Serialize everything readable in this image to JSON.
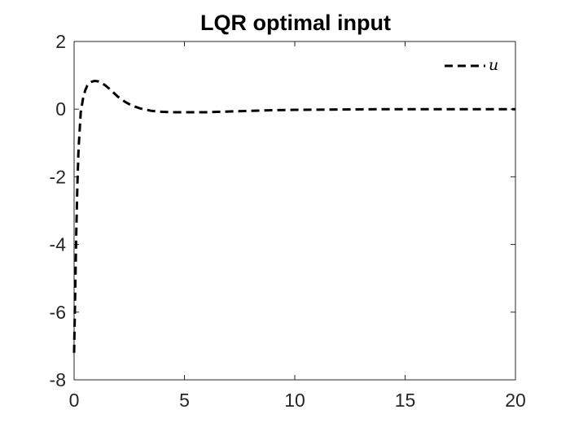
{
  "chart_data": {
    "type": "line",
    "title": "LQR optimal input",
    "xlabel": "",
    "ylabel": "",
    "xlim": [
      0,
      20
    ],
    "ylim": [
      -8,
      2
    ],
    "xticks": [
      "0",
      "5",
      "10",
      "15",
      "20"
    ],
    "yticks": [
      "2",
      "0",
      "-2",
      "-4",
      "-6",
      "-8"
    ],
    "grid": false,
    "legend": {
      "position": "top-right",
      "entries": [
        "u"
      ]
    },
    "series": [
      {
        "name": "u",
        "style": "dashed",
        "color": "#000000",
        "x": [
          0,
          0.05,
          0.1,
          0.15,
          0.2,
          0.3,
          0.4,
          0.5,
          0.6,
          0.7,
          0.8,
          0.9,
          1.0,
          1.1,
          1.2,
          1.4,
          1.6,
          1.8,
          2.0,
          2.3,
          2.6,
          3.0,
          3.5,
          4.0,
          4.5,
          5.0,
          5.5,
          6.0,
          6.5,
          7.0,
          8.0,
          9.0,
          10.0,
          12.0,
          14.0,
          16.0,
          18.0,
          20.0
        ],
        "y": [
          -7.2,
          -5.4,
          -3.6,
          -2.2,
          -1.2,
          -0.1,
          0.3,
          0.55,
          0.7,
          0.77,
          0.81,
          0.83,
          0.83,
          0.82,
          0.79,
          0.71,
          0.6,
          0.48,
          0.36,
          0.22,
          0.11,
          0.02,
          -0.05,
          -0.08,
          -0.09,
          -0.09,
          -0.09,
          -0.09,
          -0.08,
          -0.07,
          -0.05,
          -0.03,
          -0.02,
          -0.01,
          0,
          0,
          0,
          0
        ]
      }
    ]
  }
}
